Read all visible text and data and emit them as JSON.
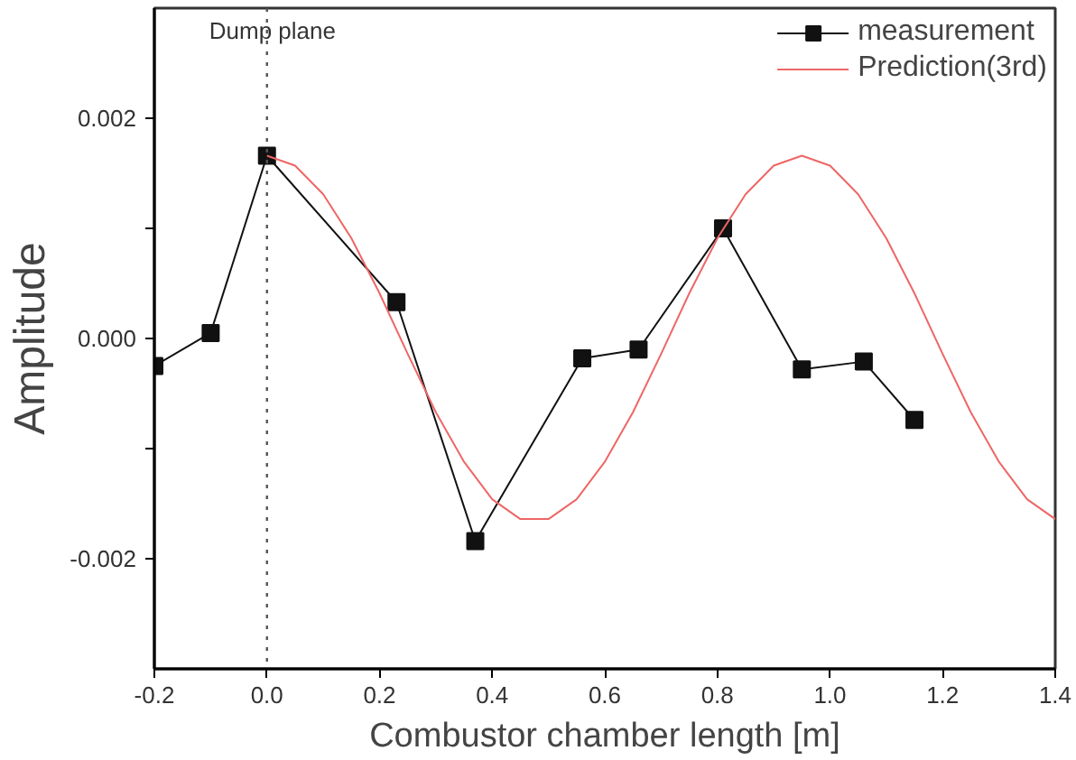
{
  "chart_data": {
    "type": "line",
    "xlabel": "Combustor chamber length [m]",
    "ylabel": "Amplitude",
    "xlim": [
      -0.2,
      1.4
    ],
    "ylim": [
      -0.003,
      0.003
    ],
    "xticks": [
      {
        "value": -0.2,
        "label": "-0.2"
      },
      {
        "value": 0,
        "label": "0.0"
      },
      {
        "value": 0.2,
        "label": "0.2"
      },
      {
        "value": 0.4,
        "label": "0.4"
      },
      {
        "value": 0.6,
        "label": "0.6"
      },
      {
        "value": 0.8,
        "label": "0.8"
      },
      {
        "value": 1.0,
        "label": "1.0"
      },
      {
        "value": 1.2,
        "label": "1.2"
      },
      {
        "value": 1.4,
        "label": "1.4"
      }
    ],
    "yticks": [
      {
        "value": -0.002,
        "label": "-0.002"
      },
      {
        "value": -0.001,
        "label": null
      },
      {
        "value": 0,
        "label": "0.000"
      },
      {
        "value": 0.001,
        "label": null
      },
      {
        "value": 0.002,
        "label": "0.002"
      }
    ],
    "grid": false,
    "legend": "top right",
    "series": [
      {
        "name": "measurement",
        "color": "#111111",
        "marker": "square",
        "line_style": "solid",
        "x": [
          -0.2,
          -0.1,
          0.0,
          0.23,
          0.37,
          0.56,
          0.66,
          0.81,
          0.95,
          1.06,
          1.15
        ],
        "values": [
          -0.00025,
          5e-05,
          0.00166,
          0.00033,
          -0.00184,
          -0.00018,
          -0.0001,
          0.001,
          -0.00028,
          -0.00021,
          -0.00074
        ]
      },
      {
        "name": "Prediction(3rd)",
        "color": "#ee6666",
        "marker": "none",
        "line_style": "solid",
        "x": [
          0,
          0.05,
          0.1,
          0.15,
          0.2,
          0.25,
          0.3,
          0.35,
          0.4,
          0.45,
          0.5,
          0.55,
          0.6,
          0.65,
          0.7,
          0.75,
          0.8,
          0.85,
          0.9,
          0.95,
          1.0,
          1.05,
          1.1,
          1.15,
          1.2,
          1.25,
          1.3,
          1.35,
          1.4
        ],
        "values": [
          0.00166,
          0.00157,
          0.00131,
          0.00091,
          0.00041,
          -0.00014,
          -0.00067,
          -0.00112,
          -0.00146,
          -0.00164,
          -0.00164,
          -0.00146,
          -0.00112,
          -0.00067,
          -0.00014,
          0.00041,
          0.00091,
          0.00131,
          0.00157,
          0.00166,
          0.00157,
          0.00131,
          0.00091,
          0.00041,
          -0.00014,
          -0.00067,
          -0.00112,
          -0.00146,
          -0.00164
        ]
      }
    ],
    "ref_lines": [
      {
        "axis": "x",
        "value": 0,
        "label": "Dump plane",
        "color": "#555555",
        "line_style": "dotted"
      }
    ]
  }
}
